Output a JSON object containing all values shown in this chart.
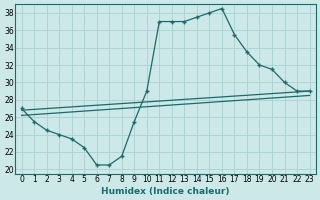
{
  "xlabel": "Humidex (Indice chaleur)",
  "bg_color": "#cce8e8",
  "line_color": "#1a6b6b",
  "xlim": [
    -0.5,
    23.5
  ],
  "ylim": [
    19.5,
    39
  ],
  "xticks": [
    0,
    1,
    2,
    3,
    4,
    5,
    6,
    7,
    8,
    9,
    10,
    11,
    12,
    13,
    14,
    15,
    16,
    17,
    18,
    19,
    20,
    21,
    22,
    23
  ],
  "yticks": [
    20,
    22,
    24,
    26,
    28,
    30,
    32,
    34,
    36,
    38
  ],
  "grid_color": "#afd4d4",
  "series": [
    {
      "x": [
        0,
        1,
        2,
        3,
        4,
        5,
        6,
        7,
        8,
        9,
        10,
        11,
        12,
        13,
        14,
        15,
        16,
        17,
        18,
        19,
        20,
        21,
        22,
        23
      ],
      "y": [
        27,
        25.5,
        24.5,
        24,
        23.5,
        22.5,
        20.5,
        20.5,
        21.5,
        25.5,
        29,
        37,
        37,
        37,
        37.5,
        38,
        38.5,
        35.5,
        33.5,
        32,
        31.5,
        30,
        29,
        29
      ],
      "with_markers": true
    },
    {
      "x": [
        0,
        23
      ],
      "y": [
        26.2,
        28.5
      ],
      "with_markers": false
    },
    {
      "x": [
        0,
        23
      ],
      "y": [
        26.8,
        29.0
      ],
      "with_markers": false
    }
  ]
}
